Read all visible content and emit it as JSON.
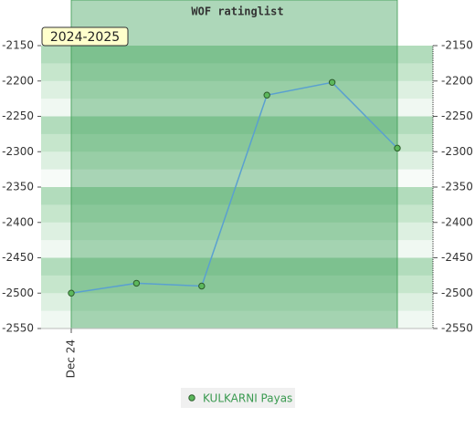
{
  "chart_data": {
    "type": "line",
    "title": "WOF ratinglist",
    "categories": [
      "Dec 24",
      null,
      null,
      null,
      null,
      null
    ],
    "series": [
      {
        "name": "KULKARNI Payas",
        "color": "#5aa0d0",
        "marker_color": "#5cb85c",
        "values": [
          -2500,
          -2486,
          -2490,
          -2220,
          -2202,
          -2295
        ]
      }
    ],
    "band": {
      "label": "2024-2025"
    },
    "ylim": [
      -2550,
      -2150
    ],
    "yticks": [
      -2550,
      -2500,
      -2450,
      -2400,
      -2350,
      -2300,
      -2250,
      -2200,
      -2150
    ],
    "grid": false
  }
}
